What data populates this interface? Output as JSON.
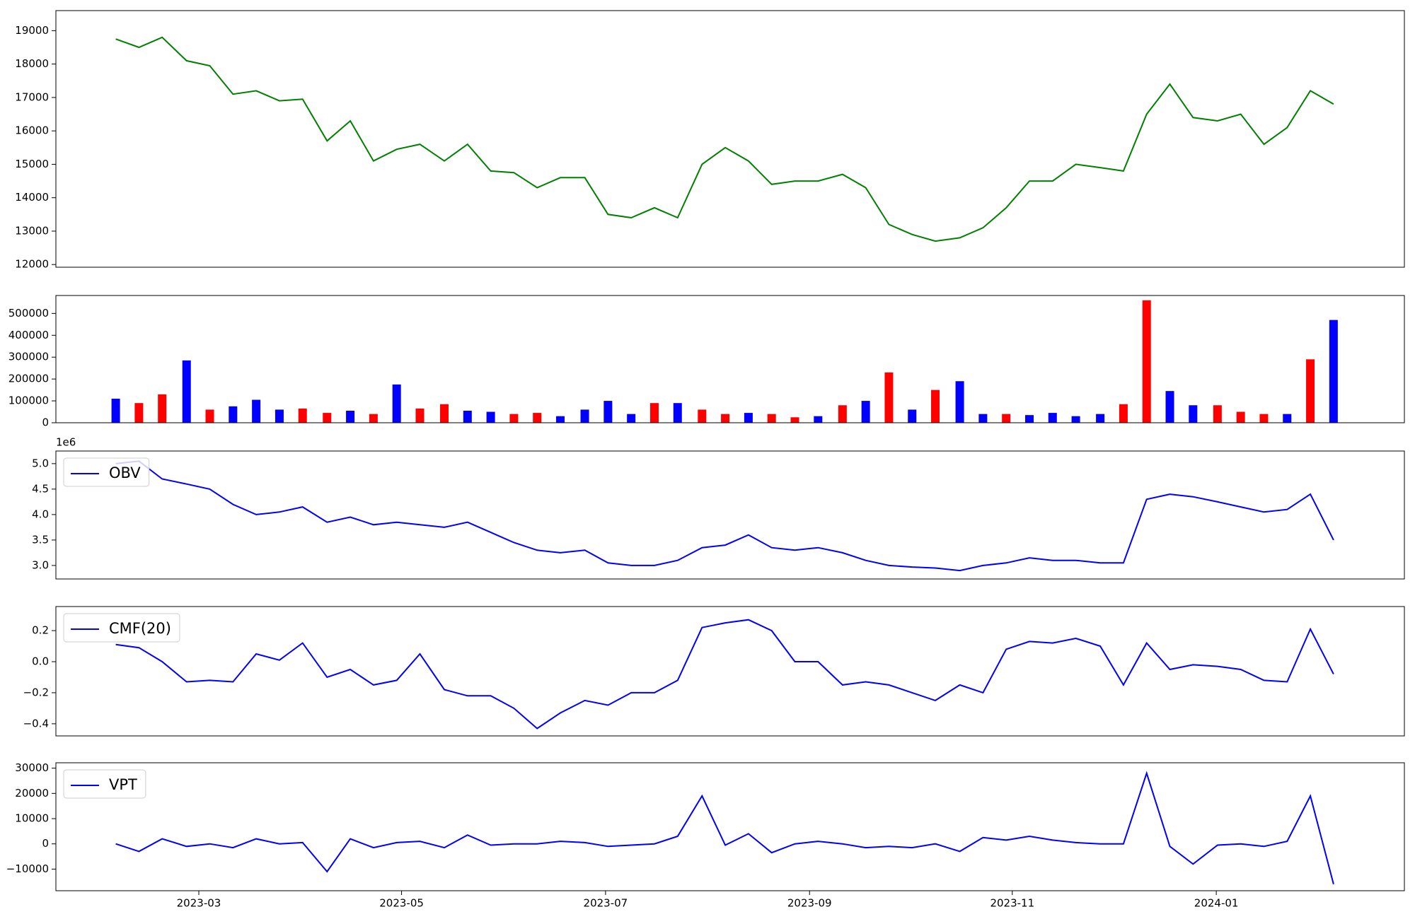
{
  "chart_data": [
    {
      "type": "line",
      "color": "#008000",
      "x": [
        2023.099,
        2023.118,
        2023.137,
        2023.157,
        2023.176,
        2023.195,
        2023.214,
        2023.233,
        2023.252,
        2023.272,
        2023.291,
        2023.31,
        2023.329,
        2023.348,
        2023.368,
        2023.387,
        2023.406,
        2023.425,
        2023.444,
        2023.463,
        2023.483,
        2023.502,
        2023.521,
        2023.54,
        2023.559,
        2023.579,
        2023.598,
        2023.617,
        2023.636,
        2023.655,
        2023.674,
        2023.694,
        2023.713,
        2023.732,
        2023.751,
        2023.77,
        2023.79,
        2023.809,
        2023.828,
        2023.847,
        2023.866,
        2023.885,
        2023.905,
        2023.924,
        2023.943,
        2023.962,
        2023.981,
        2024.001,
        2024.02,
        2024.039,
        2024.058,
        2024.077,
        2024.096
      ],
      "values": [
        18750,
        18500,
        18800,
        18100,
        17950,
        17100,
        17200,
        16900,
        16950,
        15700,
        16300,
        15100,
        15450,
        15600,
        15100,
        15600,
        14800,
        14750,
        14300,
        14600,
        14600,
        13500,
        13400,
        13700,
        13400,
        15000,
        15500,
        15100,
        14400,
        14500,
        14500,
        14700,
        14300,
        13200,
        12900,
        12700,
        12800,
        13100,
        13700,
        14500,
        14500,
        15000,
        14900,
        14800,
        16500,
        17400,
        16400,
        16300,
        16500,
        15600,
        16100,
        17200,
        16800
      ],
      "xlim": [
        2023.05,
        2024.154
      ],
      "ylim": [
        11920,
        19600
      ],
      "yticks": [
        12000,
        13000,
        14000,
        15000,
        16000,
        17000,
        18000,
        19000
      ]
    },
    {
      "type": "bar",
      "x": [
        2023.099,
        2023.118,
        2023.137,
        2023.157,
        2023.176,
        2023.195,
        2023.214,
        2023.233,
        2023.252,
        2023.272,
        2023.291,
        2023.31,
        2023.329,
        2023.348,
        2023.368,
        2023.387,
        2023.406,
        2023.425,
        2023.444,
        2023.463,
        2023.483,
        2023.502,
        2023.521,
        2023.54,
        2023.559,
        2023.579,
        2023.598,
        2023.617,
        2023.636,
        2023.655,
        2023.674,
        2023.694,
        2023.713,
        2023.732,
        2023.751,
        2023.77,
        2023.79,
        2023.809,
        2023.828,
        2023.847,
        2023.866,
        2023.885,
        2023.905,
        2023.924,
        2023.943,
        2023.962,
        2023.981,
        2024.001,
        2024.02,
        2024.039,
        2024.058,
        2024.077,
        2024.096
      ],
      "values": [
        110000,
        90000,
        130000,
        285000,
        60000,
        75000,
        105000,
        60000,
        65000,
        45000,
        55000,
        40000,
        175000,
        65000,
        85000,
        55000,
        50000,
        40000,
        45000,
        30000,
        60000,
        100000,
        40000,
        90000,
        90000,
        60000,
        40000,
        45000,
        40000,
        25000,
        30000,
        80000,
        100000,
        230000,
        60000,
        150000,
        190000,
        40000,
        40000,
        35000,
        45000,
        30000,
        40000,
        85000,
        560000,
        145000,
        80000,
        80000,
        50000,
        40000,
        40000,
        290000,
        470000
      ],
      "colors": [
        "#0000ff",
        "#ff0000",
        "#ff0000",
        "#0000ff",
        "#ff0000",
        "#0000ff",
        "#0000ff",
        "#0000ff",
        "#ff0000",
        "#ff0000",
        "#0000ff",
        "#ff0000",
        "#0000ff",
        "#ff0000",
        "#ff0000",
        "#0000ff",
        "#0000ff",
        "#ff0000",
        "#ff0000",
        "#0000ff",
        "#0000ff",
        "#0000ff",
        "#0000ff",
        "#ff0000",
        "#0000ff",
        "#ff0000",
        "#ff0000",
        "#0000ff",
        "#ff0000",
        "#ff0000",
        "#0000ff",
        "#ff0000",
        "#0000ff",
        "#ff0000",
        "#0000ff",
        "#ff0000",
        "#0000ff",
        "#0000ff",
        "#ff0000",
        "#0000ff",
        "#0000ff",
        "#0000ff",
        "#0000ff",
        "#ff0000",
        "#ff0000",
        "#0000ff",
        "#0000ff",
        "#ff0000",
        "#ff0000",
        "#ff0000",
        "#0000ff",
        "#ff0000",
        "#0000ff"
      ],
      "xlim": [
        2023.05,
        2024.154
      ],
      "ylim": [
        0,
        582000
      ],
      "yticks": [
        0,
        100000,
        200000,
        300000,
        400000,
        500000
      ]
    },
    {
      "type": "line",
      "legend": "upper left",
      "offset_label": "1e6",
      "x": [
        2023.099,
        2023.118,
        2023.137,
        2023.157,
        2023.176,
        2023.195,
        2023.214,
        2023.233,
        2023.252,
        2023.272,
        2023.291,
        2023.31,
        2023.329,
        2023.348,
        2023.368,
        2023.387,
        2023.406,
        2023.425,
        2023.444,
        2023.463,
        2023.483,
        2023.502,
        2023.521,
        2023.54,
        2023.559,
        2023.579,
        2023.598,
        2023.617,
        2023.636,
        2023.655,
        2023.674,
        2023.694,
        2023.713,
        2023.732,
        2023.751,
        2023.77,
        2023.79,
        2023.809,
        2023.828,
        2023.847,
        2023.866,
        2023.885,
        2023.905,
        2023.924,
        2023.943,
        2023.962,
        2023.981,
        2024.001,
        2024.02,
        2024.039,
        2024.058,
        2024.077,
        2024.096
      ],
      "series": [
        {
          "name": "OBV",
          "color": "#0000ff",
          "values": [
            5000000,
            5050000,
            4700000,
            4600000,
            4500000,
            4200000,
            4000000,
            4050000,
            4150000,
            3850000,
            3950000,
            3800000,
            3850000,
            3800000,
            3750000,
            3850000,
            3650000,
            3450000,
            3300000,
            3250000,
            3300000,
            3050000,
            3000000,
            3000000,
            3100000,
            3350000,
            3400000,
            3600000,
            3350000,
            3300000,
            3350000,
            3250000,
            3100000,
            3000000,
            2970000,
            2950000,
            2900000,
            3000000,
            3050000,
            3150000,
            3100000,
            3100000,
            3050000,
            3050000,
            4300000,
            4400000,
            4350000,
            4250000,
            4150000,
            4050000,
            4100000,
            4400000,
            3500000
          ]
        }
      ],
      "xlim": [
        2023.05,
        2024.154
      ],
      "ylim": [
        2735000,
        5248000
      ],
      "yticks": [
        {
          "value": 3000000,
          "label": "3.0"
        },
        {
          "value": 3500000,
          "label": "3.5"
        },
        {
          "value": 4000000,
          "label": "4.0"
        },
        {
          "value": 4500000,
          "label": "4.5"
        },
        {
          "value": 5000000,
          "label": "5.0"
        }
      ]
    },
    {
      "type": "line",
      "legend": "upper left",
      "x": [
        2023.099,
        2023.118,
        2023.137,
        2023.157,
        2023.176,
        2023.195,
        2023.214,
        2023.233,
        2023.252,
        2023.272,
        2023.291,
        2023.31,
        2023.329,
        2023.348,
        2023.368,
        2023.387,
        2023.406,
        2023.425,
        2023.444,
        2023.463,
        2023.483,
        2023.502,
        2023.521,
        2023.54,
        2023.559,
        2023.579,
        2023.598,
        2023.617,
        2023.636,
        2023.655,
        2023.674,
        2023.694,
        2023.713,
        2023.732,
        2023.751,
        2023.77,
        2023.79,
        2023.809,
        2023.828,
        2023.847,
        2023.866,
        2023.885,
        2023.905,
        2023.924,
        2023.943,
        2023.962,
        2023.981,
        2024.001,
        2024.02,
        2024.039,
        2024.058,
        2024.077,
        2024.096
      ],
      "series": [
        {
          "name": "CMF(20)",
          "color": "#0000ff",
          "values": [
            0.11,
            0.09,
            0.0,
            -0.13,
            -0.12,
            -0.13,
            0.05,
            0.01,
            0.12,
            -0.1,
            -0.05,
            -0.15,
            -0.12,
            0.05,
            -0.18,
            -0.22,
            -0.22,
            -0.3,
            -0.43,
            -0.33,
            -0.25,
            -0.28,
            -0.2,
            -0.2,
            -0.12,
            0.22,
            0.25,
            0.27,
            0.2,
            0.0,
            0.0,
            -0.15,
            -0.13,
            -0.15,
            -0.2,
            -0.25,
            -0.15,
            -0.2,
            0.08,
            0.13,
            0.12,
            0.15,
            0.1,
            -0.15,
            0.12,
            -0.05,
            -0.02,
            -0.03,
            -0.05,
            -0.12,
            -0.13,
            0.21,
            -0.08
          ]
        }
      ],
      "xlim": [
        2023.05,
        2024.154
      ],
      "ylim": [
        -0.478,
        0.355
      ],
      "yticks": [
        {
          "value": -0.4,
          "label": "−0.4"
        },
        {
          "value": -0.2,
          "label": "−0.2"
        },
        {
          "value": 0,
          "label": "0.0"
        },
        {
          "value": 0.2,
          "label": "0.2"
        }
      ]
    },
    {
      "type": "line",
      "legend": "upper left",
      "x": [
        2023.099,
        2023.118,
        2023.137,
        2023.157,
        2023.176,
        2023.195,
        2023.214,
        2023.233,
        2023.252,
        2023.272,
        2023.291,
        2023.31,
        2023.329,
        2023.348,
        2023.368,
        2023.387,
        2023.406,
        2023.425,
        2023.444,
        2023.463,
        2023.483,
        2023.502,
        2023.521,
        2023.54,
        2023.559,
        2023.579,
        2023.598,
        2023.617,
        2023.636,
        2023.655,
        2023.674,
        2023.694,
        2023.713,
        2023.732,
        2023.751,
        2023.77,
        2023.79,
        2023.809,
        2023.828,
        2023.847,
        2023.866,
        2023.885,
        2023.905,
        2023.924,
        2023.943,
        2023.962,
        2023.981,
        2024.001,
        2024.02,
        2024.039,
        2024.058,
        2024.077,
        2024.096
      ],
      "series": [
        {
          "name": "VPT",
          "color": "#0000ff",
          "values": [
            0,
            -3000,
            2000,
            -1000,
            0,
            -1500,
            2000,
            0,
            500,
            -11000,
            2000,
            -1500,
            500,
            1000,
            -1500,
            3500,
            -500,
            0,
            0,
            1000,
            500,
            -1000,
            -500,
            0,
            3000,
            19000,
            -500,
            4000,
            -3500,
            0,
            1000,
            0,
            -1500,
            -1000,
            -1500,
            0,
            -3000,
            2500,
            1500,
            3000,
            1500,
            500,
            0,
            0,
            28000,
            -1000,
            -8000,
            -500,
            0,
            -1000,
            1000,
            19000,
            -16000
          ]
        }
      ],
      "xlim": [
        2023.05,
        2024.154
      ],
      "ylim": [
        -18570,
        32140
      ],
      "yticks": [
        {
          "value": -10000,
          "label": "−10000"
        },
        0,
        10000,
        20000,
        30000
      ],
      "xticks": [
        {
          "value": 2023.167,
          "label": "2023-03"
        },
        {
          "value": 2023.333,
          "label": "2023-05"
        },
        {
          "value": 2023.5,
          "label": "2023-07"
        },
        {
          "value": 2023.667,
          "label": "2023-09"
        },
        {
          "value": 2023.833,
          "label": "2023-11"
        },
        {
          "value": 2024.0,
          "label": "2024-01"
        }
      ]
    }
  ]
}
